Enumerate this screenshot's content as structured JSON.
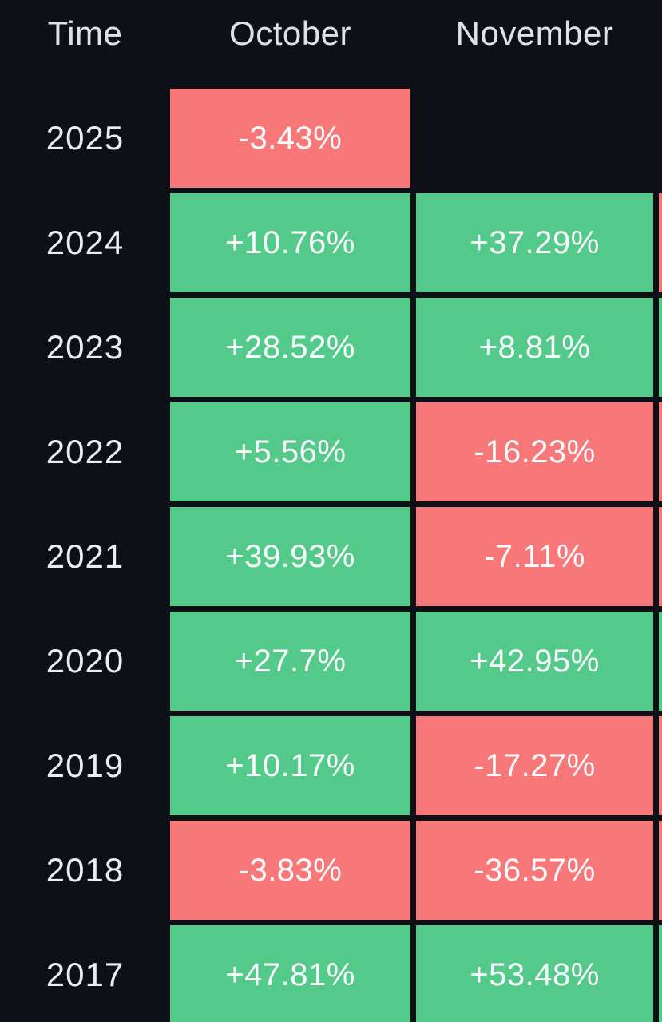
{
  "table": {
    "headers": [
      "Time",
      "October",
      "November"
    ],
    "rows": [
      {
        "year": "2025",
        "october": {
          "label": "-3.43%",
          "sign": "negative"
        },
        "november": null,
        "next_month_sliver": null
      },
      {
        "year": "2024",
        "october": {
          "label": "+10.76%",
          "sign": "positive"
        },
        "november": {
          "label": "+37.29%",
          "sign": "positive"
        },
        "next_month_sliver": "negative"
      },
      {
        "year": "2023",
        "october": {
          "label": "+28.52%",
          "sign": "positive"
        },
        "november": {
          "label": "+8.81%",
          "sign": "positive"
        },
        "next_month_sliver": "positive"
      },
      {
        "year": "2022",
        "october": {
          "label": "+5.56%",
          "sign": "positive"
        },
        "november": {
          "label": "-16.23%",
          "sign": "negative"
        },
        "next_month_sliver": "negative"
      },
      {
        "year": "2021",
        "october": {
          "label": "+39.93%",
          "sign": "positive"
        },
        "november": {
          "label": "-7.11%",
          "sign": "negative"
        },
        "next_month_sliver": "negative"
      },
      {
        "year": "2020",
        "october": {
          "label": "+27.7%",
          "sign": "positive"
        },
        "november": {
          "label": "+42.95%",
          "sign": "positive"
        },
        "next_month_sliver": "positive"
      },
      {
        "year": "2019",
        "october": {
          "label": "+10.17%",
          "sign": "positive"
        },
        "november": {
          "label": "-17.27%",
          "sign": "negative"
        },
        "next_month_sliver": "negative"
      },
      {
        "year": "2018",
        "october": {
          "label": "-3.83%",
          "sign": "negative"
        },
        "november": {
          "label": "-36.57%",
          "sign": "negative"
        },
        "next_month_sliver": "negative"
      },
      {
        "year": "2017",
        "october": {
          "label": "+47.81%",
          "sign": "positive"
        },
        "november": {
          "label": "+53.48%",
          "sign": "positive"
        },
        "next_month_sliver": "positive"
      }
    ]
  },
  "colors": {
    "background": "#0d1016",
    "positive": "#53c98a",
    "negative": "#f87778",
    "header_text": "#dde2ea",
    "cell_text": "#fbfcfd"
  },
  "chart_data": {
    "type": "heatmap",
    "row_label_header": "Time",
    "columns": [
      "October",
      "November"
    ],
    "rows": [
      "2025",
      "2024",
      "2023",
      "2022",
      "2021",
      "2020",
      "2019",
      "2018",
      "2017"
    ],
    "values_pct": [
      [
        -3.43,
        null
      ],
      [
        10.76,
        37.29
      ],
      [
        28.52,
        8.81
      ],
      [
        5.56,
        -16.23
      ],
      [
        39.93,
        -7.11
      ],
      [
        27.7,
        42.95
      ],
      [
        10.17,
        -17.27
      ],
      [
        -3.83,
        -36.57
      ],
      [
        47.81,
        53.48
      ]
    ],
    "cell_labels": [
      [
        "-3.43%",
        ""
      ],
      [
        "+10.76%",
        "+37.29%"
      ],
      [
        "+28.52%",
        "+8.81%"
      ],
      [
        "+5.56%",
        "-16.23%"
      ],
      [
        "+39.93%",
        "-7.11%"
      ],
      [
        "+27.7%",
        "+42.95%"
      ],
      [
        "+10.17%",
        "-17.27%"
      ],
      [
        "-3.83%",
        "-36.57%"
      ],
      [
        "+47.81%",
        "+53.48%"
      ]
    ],
    "partial_next_column": {
      "header_visible": false,
      "cell_signs": [
        null,
        "negative",
        "positive",
        "negative",
        "negative",
        "positive",
        "negative",
        "negative",
        "positive"
      ]
    },
    "positive_color": "#53c98a",
    "negative_color": "#f87778",
    "layout": "rows are years (newest first), columns are months; green = positive monthly return, red = negative; a third month column is cut off at the right edge"
  }
}
